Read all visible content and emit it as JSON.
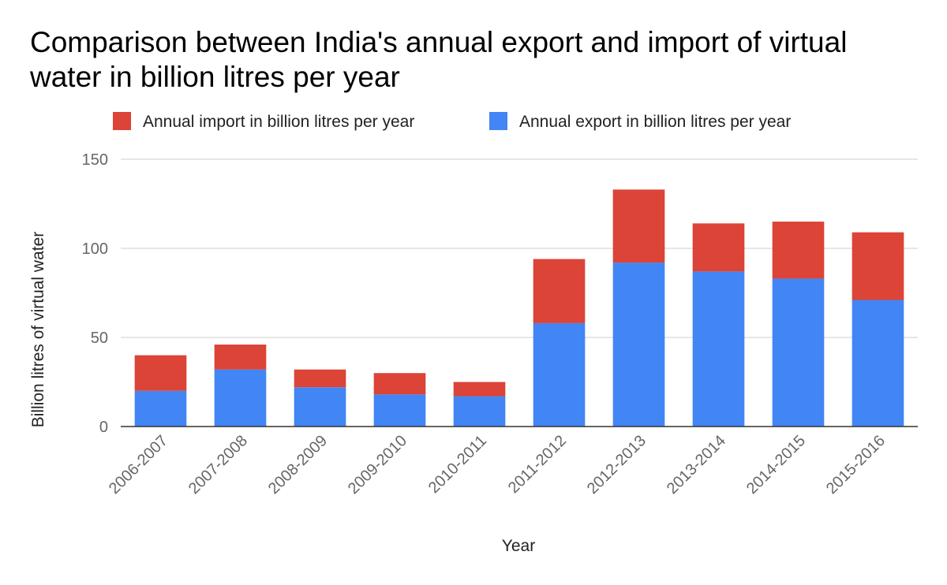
{
  "chart_data": {
    "type": "bar",
    "stacked": true,
    "title": "Comparison between India's annual export and import of virtual water in billion litres per year",
    "xlabel": "Year",
    "ylabel": "Billion litres of virtual water",
    "ylim": [
      0,
      150
    ],
    "yticks": [
      0,
      50,
      100,
      150
    ],
    "grid": true,
    "legend_position": "top",
    "categories": [
      "2006-2007",
      "2007-2008",
      "2008-2009",
      "2009-2010",
      "2010-2011",
      "2011-2012",
      "2012-2013",
      "2013-2014",
      "2014-2015",
      "2015-2016"
    ],
    "series": [
      {
        "name": "Annual export in billion litres per year",
        "color": "#4285f4",
        "values": [
          20,
          32,
          22,
          18,
          17,
          58,
          92,
          87,
          83,
          71
        ]
      },
      {
        "name": "Annual import in billion litres per year",
        "color": "#db4437",
        "values": [
          20,
          14,
          10,
          12,
          8,
          36,
          41,
          27,
          32,
          38
        ]
      }
    ],
    "legend_order": [
      1,
      0
    ]
  }
}
